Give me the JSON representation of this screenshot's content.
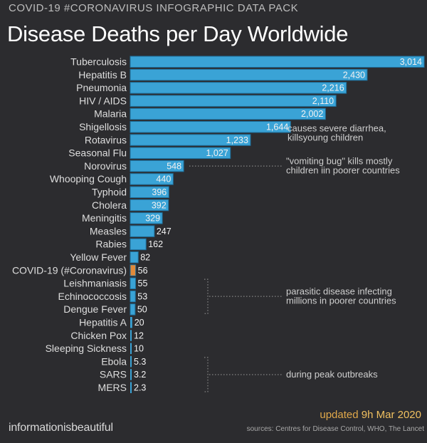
{
  "header": {
    "pack_title": "COVID-19 #CORONAVIRUS INFOGRAPHIC DATA PACK",
    "title": "Disease Deaths per Day Worldwide"
  },
  "footer": {
    "brand": "informationisbeautiful",
    "updated_prefix": "updated",
    "updated_date": "9h Mar 2020",
    "sources": "sources: Centres for Disease Control, WHO, The Lancet"
  },
  "colors": {
    "bar": "#3aa3d6",
    "bar_highlight": "#e08a3a",
    "background": "#2c2c2f"
  },
  "chart_data": {
    "type": "bar",
    "orientation": "horizontal",
    "title": "Disease Deaths per Day Worldwide",
    "categories": [
      "Tuberculosis",
      "Hepatitis B",
      "Pneumonia",
      "HIV / AIDS",
      "Malaria",
      "Shigellosis",
      "Rotavirus",
      "Seasonal Flu",
      "Norovirus",
      "Whooping Cough",
      "Typhoid",
      "Cholera",
      "Meningitis",
      "Measles",
      "Rabies",
      "Yellow Fever",
      "COVID-19 (#Coronavirus)",
      "Leishmaniasis",
      "Echinococcosis",
      "Dengue Fever",
      "Hepatitis A",
      "Chicken Pox",
      "Sleeping Sickness",
      "Ebola",
      "SARS",
      "MERS"
    ],
    "values": [
      3014,
      2430,
      2216,
      2110,
      2002,
      1644,
      1233,
      1027,
      548,
      440,
      396,
      392,
      329,
      247,
      162,
      82,
      56,
      55,
      53,
      50,
      20,
      12,
      10,
      5.3,
      3.2,
      2.3
    ],
    "value_labels": [
      "3,014",
      "2,430",
      "2,216",
      "2,110",
      "2,002",
      "1,644",
      "1,233",
      "1,027",
      "548",
      "440",
      "396",
      "392",
      "329",
      "247",
      "162",
      "82",
      "56",
      "55",
      "53",
      "50",
      "20",
      "12",
      "10",
      "5.3",
      "3.2",
      "2.3"
    ],
    "highlight": "COVID-19 (#Coronavirus)",
    "xlim": [
      0,
      3014
    ],
    "annotations": [
      {
        "lines": [
          "causes severe diarrhea,",
          "killsyoung children"
        ],
        "categories": [
          "Shigellosis",
          "Rotavirus"
        ]
      },
      {
        "lines": [
          "\"vomiting bug\" kills mostly",
          "children iin poorer countries"
        ],
        "categories": [
          "Norovirus"
        ]
      },
      {
        "lines": [
          "parasitic disease infecting",
          "millions in poorer countries"
        ],
        "categories": [
          "Leishmaniasis",
          "Echinococcosis",
          "Dengue Fever"
        ]
      },
      {
        "lines": [
          "during peak outbreaks"
        ],
        "categories": [
          "Ebola",
          "SARS",
          "MERS"
        ]
      }
    ]
  }
}
